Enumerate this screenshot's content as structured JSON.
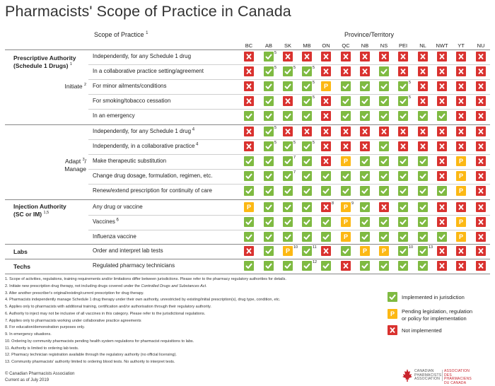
{
  "title": "Pharmacists' Scope of Practice in Canada",
  "header": {
    "scope_label": "Scope of Practice",
    "scope_sup": "1",
    "province_label": "Province/Territory"
  },
  "provinces": [
    "BC",
    "AB",
    "SK",
    "MB",
    "ON",
    "QC",
    "NB",
    "NS",
    "PEI",
    "NL",
    "NWT",
    "YT",
    "NU"
  ],
  "sections": {
    "prescriptive": {
      "name": "Prescriptive Authority",
      "name2": "(Schedule 1 Drugs)",
      "sup": "1"
    },
    "initiate": {
      "name": "Initiate",
      "sup": "2"
    },
    "adapt": {
      "name": "Adapt",
      "name2": "Manage",
      "sup": "3"
    },
    "injection": {
      "name": "Injection Authority",
      "name2": "(SC or IM)",
      "sup": "1,5"
    },
    "labs": {
      "name": "Labs"
    },
    "techs": {
      "name": "Techs"
    }
  },
  "rows": [
    {
      "label": "Independently, for any Schedule 1 drug",
      "sup": "",
      "cells": [
        "N",
        "Y",
        "N",
        "N",
        "N",
        "N",
        "N",
        "N",
        "N",
        "N",
        "N",
        "N",
        "N"
      ],
      "notes": [
        {
          "col": 1,
          "text": "5"
        }
      ]
    },
    {
      "label": "In a collaborative practice setting/agreement",
      "sup": "",
      "cells": [
        "N",
        "Y",
        "Y",
        "Y",
        "N",
        "N",
        "N",
        "Y",
        "N",
        "N",
        "N",
        "N",
        "N"
      ],
      "notes": [
        {
          "col": 1,
          "text": "5"
        },
        {
          "col": 2,
          "text": "5"
        },
        {
          "col": 3,
          "text": "5"
        }
      ]
    },
    {
      "label": "For minor ailments/conditions",
      "sup": "",
      "cells": [
        "N",
        "Y",
        "Y",
        "Y",
        "P",
        "Y",
        "Y",
        "Y",
        "Y",
        "N",
        "N",
        "N",
        "N"
      ],
      "notes": [
        {
          "col": 3,
          "text": "5"
        },
        {
          "col": 8,
          "text": "5"
        }
      ]
    },
    {
      "label": "For smoking/tobacco cessation",
      "sup": "",
      "cells": [
        "N",
        "Y",
        "N",
        "Y",
        "N",
        "Y",
        "Y",
        "Y",
        "Y",
        "N",
        "N",
        "N",
        "N"
      ],
      "notes": [
        {
          "col": 3,
          "text": "5"
        },
        {
          "col": 8,
          "text": "5"
        }
      ]
    },
    {
      "label": "In an emergency",
      "sup": "",
      "cells": [
        "Y",
        "Y",
        "Y",
        "Y",
        "N",
        "Y",
        "Y",
        "Y",
        "Y",
        "Y",
        "Y",
        "N",
        "N"
      ],
      "notes": []
    },
    {
      "label": "Independently, for any Schedule 1 drug",
      "sup": "4",
      "cells": [
        "N",
        "Y",
        "N",
        "N",
        "N",
        "N",
        "N",
        "N",
        "N",
        "N",
        "N",
        "N",
        "N"
      ],
      "notes": [
        {
          "col": 1,
          "text": "5"
        }
      ]
    },
    {
      "label": "Independently, in a collaborative practice",
      "sup": "4",
      "cells": [
        "N",
        "Y",
        "Y",
        "Y",
        "N",
        "N",
        "N",
        "Y",
        "N",
        "N",
        "N",
        "N",
        "N"
      ],
      "notes": [
        {
          "col": 1,
          "text": "5"
        },
        {
          "col": 2,
          "text": "5"
        },
        {
          "col": 3,
          "text": "5"
        }
      ]
    },
    {
      "label": "Make therapeutic substitution",
      "sup": "",
      "cells": [
        "Y",
        "Y",
        "Y",
        "Y",
        "N",
        "P",
        "Y",
        "Y",
        "Y",
        "Y",
        "N",
        "P",
        "N"
      ],
      "notes": [
        {
          "col": 2,
          "text": "7"
        }
      ]
    },
    {
      "label": "Change drug dosage, formulation, regimen, etc.",
      "sup": "",
      "cells": [
        "Y",
        "Y",
        "Y",
        "Y",
        "Y",
        "Y",
        "Y",
        "Y",
        "Y",
        "Y",
        "N",
        "P",
        "N"
      ],
      "notes": [
        {
          "col": 2,
          "text": "7"
        }
      ]
    },
    {
      "label": "Renew/extend prescription for continuity of care",
      "sup": "",
      "cells": [
        "Y",
        "Y",
        "Y",
        "Y",
        "Y",
        "Y",
        "Y",
        "Y",
        "Y",
        "Y",
        "Y",
        "P",
        "N"
      ],
      "notes": []
    },
    {
      "label": "Any drug or vaccine",
      "sup": "",
      "cells": [
        "P",
        "Y",
        "Y",
        "Y",
        "N",
        "P",
        "Y",
        "N",
        "Y",
        "Y",
        "N",
        "N",
        "N"
      ],
      "notes": [
        {
          "col": 4,
          "text": "8"
        },
        {
          "col": 5,
          "text": "9"
        }
      ]
    },
    {
      "label": "Vaccines",
      "sup": "6",
      "cells": [
        "Y",
        "Y",
        "Y",
        "Y",
        "Y",
        "P",
        "Y",
        "Y",
        "Y",
        "Y",
        "N",
        "P",
        "N"
      ],
      "notes": []
    },
    {
      "label": "Influenza vaccine",
      "sup": "",
      "cells": [
        "Y",
        "Y",
        "Y",
        "Y",
        "Y",
        "P",
        "Y",
        "Y",
        "Y",
        "Y",
        "Y",
        "P",
        "N"
      ],
      "notes": []
    },
    {
      "label": "Order and interpret lab tests",
      "sup": "",
      "cells": [
        "N",
        "Y",
        "P",
        "Y",
        "N",
        "Y",
        "P",
        "P",
        "Y",
        "Y",
        "N",
        "N",
        "N"
      ],
      "notes": [
        {
          "col": 2,
          "text": "10"
        },
        {
          "col": 3,
          "text": "11"
        },
        {
          "col": 8,
          "text": "10"
        },
        {
          "col": 9,
          "text": "13"
        }
      ]
    },
    {
      "label": "Regulated pharmacy technicians",
      "sup": "",
      "cells": [
        "Y",
        "Y",
        "Y",
        "Y",
        "Y",
        "N",
        "Y",
        "Y",
        "Y",
        "Y",
        "N",
        "N",
        "N"
      ],
      "notes": [
        {
          "col": 3,
          "text": "12"
        }
      ]
    }
  ],
  "footnotes": [
    "1. Scope of activities, regulations, training requirements and/or limitations differ between jurisdictions. Please refer to the pharmacy regulatory authorities for details.",
    "2. Initiate new prescription drug therapy, not including drugs covered under the Controlled Drugs and Substances Act.",
    "3. Alter another prescriber's original/existing/current prescription for drug therapy.",
    "4. Pharmacists independently manage Schedule 1 drug therapy under their own authority, unrestricted by existing/initial prescription(s), drug type, condition, etc.",
    "5. Applies only to pharmacists with additional training, certification and/or authorisation through their regulatory authority.",
    "6. Authority to inject may not be inclusive of all vaccines in this category. Please refer to the jurisdictional regulations.",
    "7. Applies only to pharmacists working under collaborative practice agreements",
    "8. For education/demonstration purposes only.",
    "9. In emergency situations.",
    "10. Ordering by community pharmacists pending health system regulations for pharmacist requisitions to labs.",
    "11. Authority is limited to ordering lab tests.",
    "12. Pharmacy technician registration available through the regulatory authority (no official licensing).",
    "13. Community pharmacists' authority limited to ordering blood tests. No authority to interpret tests."
  ],
  "legend": {
    "implemented": "Implemented in jurisdiction",
    "pending": "Pending legislation, regulation or policy for implementation",
    "pending_line1": "Pending legislation, regulation",
    "pending_line2": "or policy for implementation",
    "not": "Not implemented",
    "pending_symbol": "P"
  },
  "footer": {
    "copyright": "© Canadian Pharmacists Association",
    "current": "Current as of July 2019"
  },
  "logo": {
    "en1": "CANADIAN",
    "en2": "PHARMACISTS",
    "en3": "ASSOCIATION",
    "fr1": "ASSOCIATION DES",
    "fr2": "PHARMACIENS",
    "fr3": "DU CANADA"
  },
  "colors": {
    "implemented": "#7fba42",
    "pending": "#fcb814",
    "not": "#d9322f"
  }
}
